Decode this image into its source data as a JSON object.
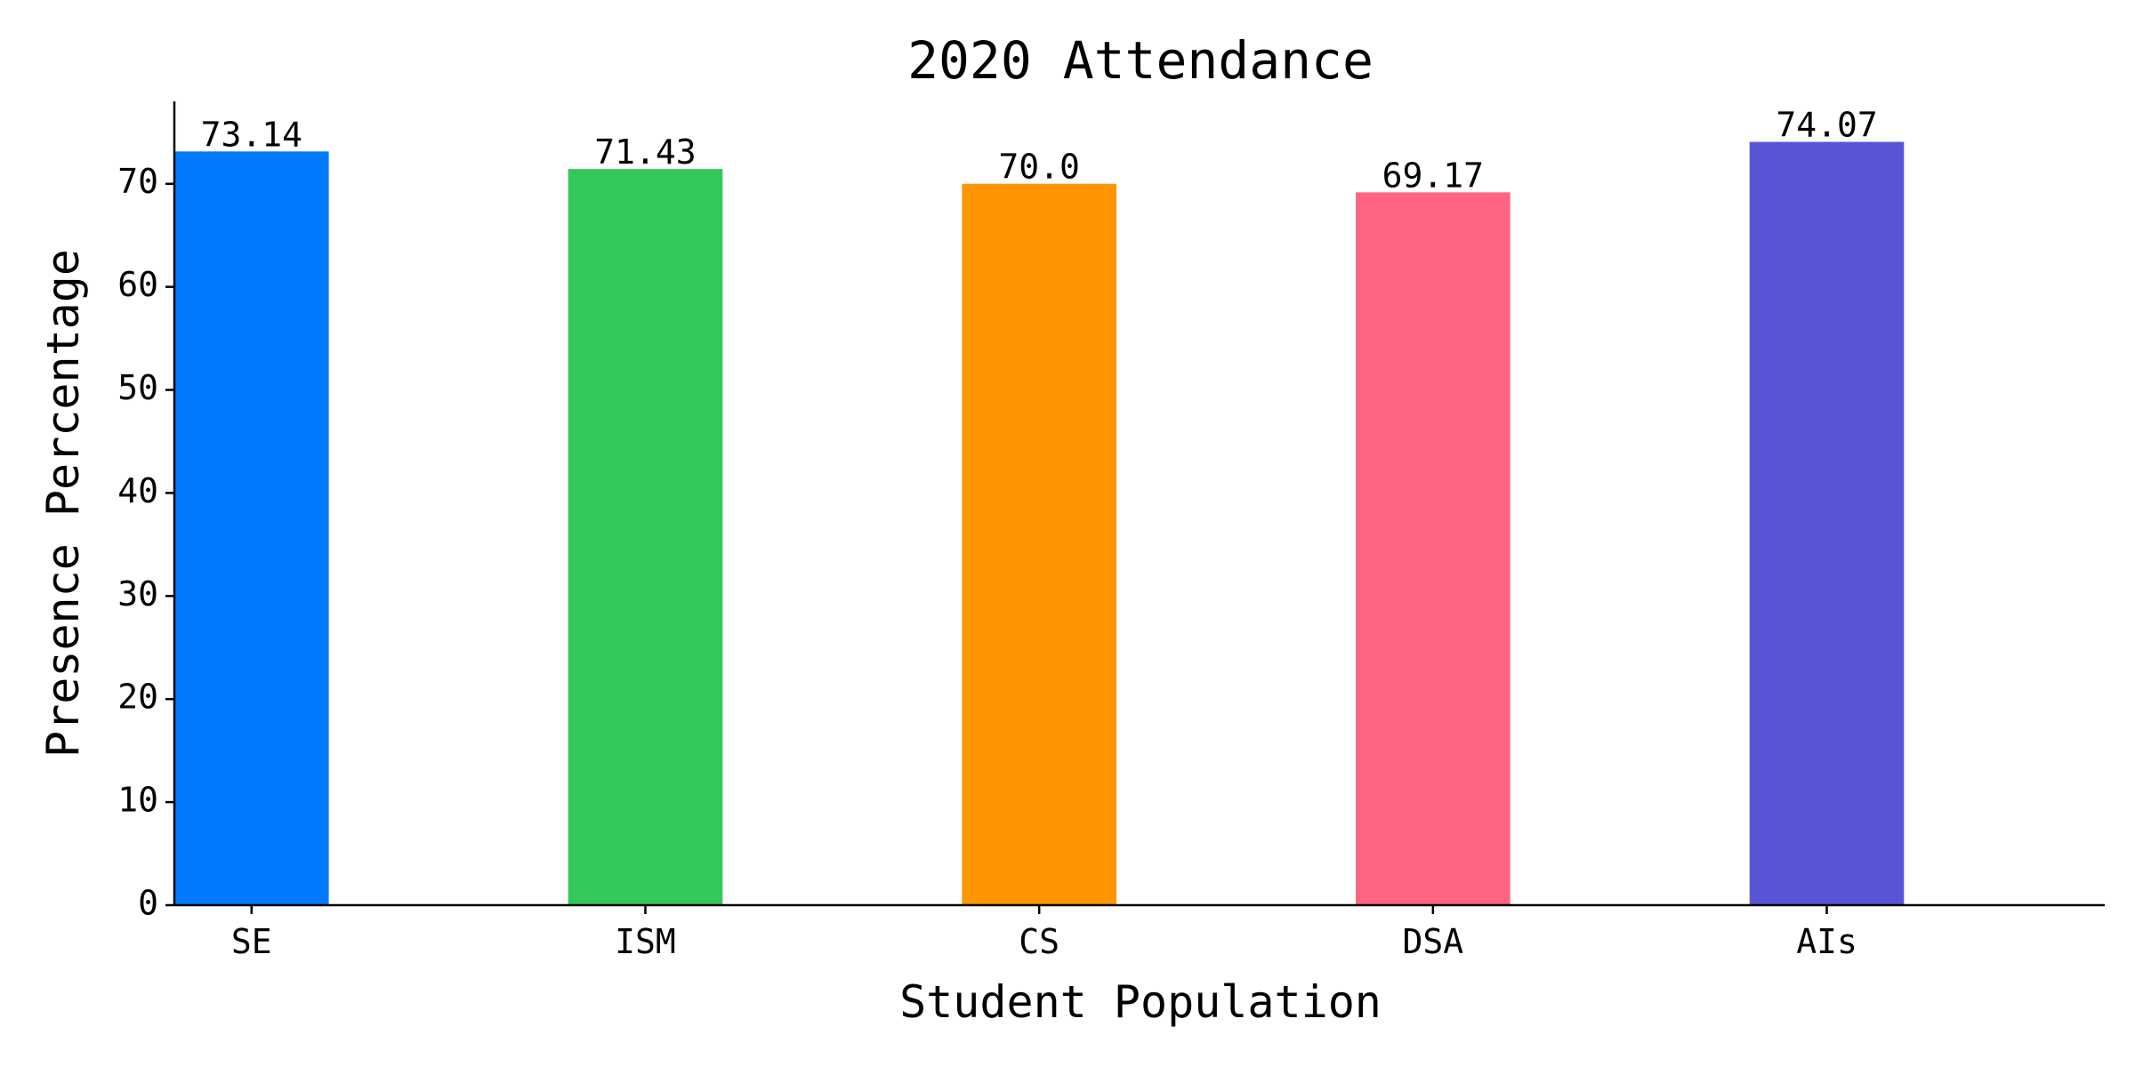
{
  "chart_data": {
    "type": "bar",
    "title": "2020 Attendance",
    "xlabel": "Student Population",
    "ylabel": "Presence Percentage",
    "categories": [
      "SE",
      "ISM",
      "CS",
      "DSA",
      "AIs"
    ],
    "values": [
      73.14,
      71.43,
      70.0,
      69.17,
      74.07
    ],
    "value_labels": [
      "73.14",
      "71.43",
      "70.0",
      "69.17",
      "74.07"
    ],
    "colors": [
      "#007aff",
      "#34c759",
      "#ff9500",
      "#ff6482",
      "#5856d6"
    ],
    "yticks": [
      0,
      10,
      20,
      30,
      40,
      50,
      60,
      70
    ],
    "ytick_labels": [
      "0",
      "10",
      "20",
      "30",
      "40",
      "50",
      "60",
      "70"
    ],
    "ylim": [
      0,
      78
    ],
    "grid": false,
    "legend": "none"
  }
}
